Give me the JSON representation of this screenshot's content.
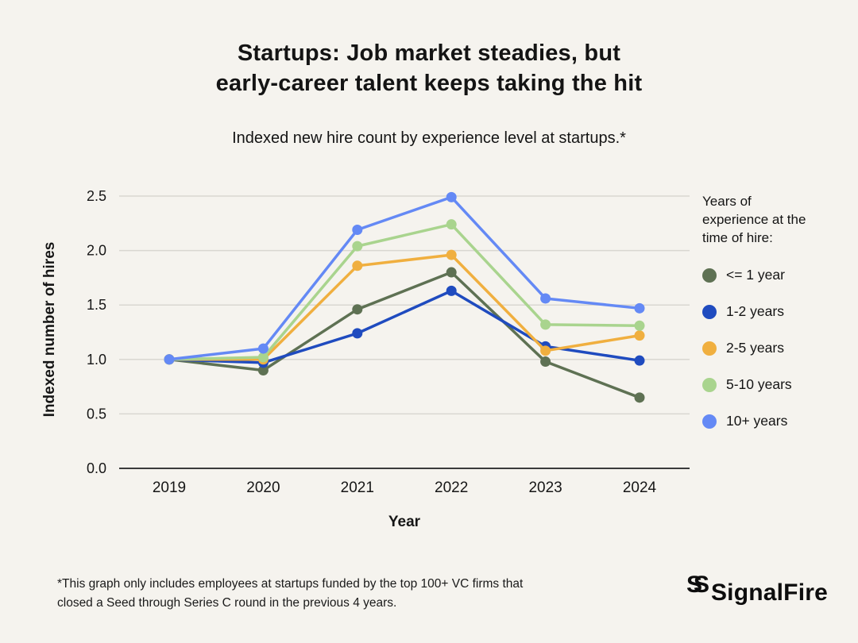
{
  "title": {
    "line1": "Startups: Job market steadies, but",
    "line2": "early-career talent keeps taking the hit"
  },
  "subtitle": "Indexed new hire count by experience level at startups.*",
  "chart_data": {
    "type": "line",
    "x": [
      2019,
      2020,
      2021,
      2022,
      2023,
      2024
    ],
    "xlabel": "Year",
    "ylabel": "Indexed number of hires",
    "ylim": [
      0,
      2.5
    ],
    "yticks": [
      0.0,
      0.5,
      1.0,
      1.5,
      2.0,
      2.5
    ],
    "grid": "horizontal",
    "legend_position": "right",
    "legend_title": "Years of experience at the time of hire:",
    "series": [
      {
        "name": "<= 1 year",
        "color": "#5e7153",
        "values": [
          1.0,
          0.9,
          1.46,
          1.8,
          0.98,
          0.65
        ]
      },
      {
        "name": "1-2 years",
        "color": "#1f4bbf",
        "values": [
          1.0,
          0.97,
          1.24,
          1.63,
          1.12,
          0.99
        ]
      },
      {
        "name": "2-5 years",
        "color": "#f0af3f",
        "values": [
          1.0,
          1.0,
          1.86,
          1.96,
          1.08,
          1.22
        ]
      },
      {
        "name": "5-10 years",
        "color": "#a9d48e",
        "values": [
          1.0,
          1.02,
          2.04,
          2.24,
          1.32,
          1.31
        ]
      },
      {
        "name": "10+ years",
        "color": "#6489f5",
        "values": [
          1.0,
          1.1,
          2.19,
          2.49,
          1.56,
          1.47
        ]
      }
    ]
  },
  "footnote": "*This graph only includes employees at startups funded by the top 100+ VC firms that closed a Seed through Series C round in the previous 4 years.",
  "logo": {
    "mark": "S",
    "text": "SignalFire"
  },
  "colors": {
    "background": "#f5f3ee",
    "grid": "#d9d7d1",
    "axis": "#3b3b3b",
    "text": "#161616"
  }
}
